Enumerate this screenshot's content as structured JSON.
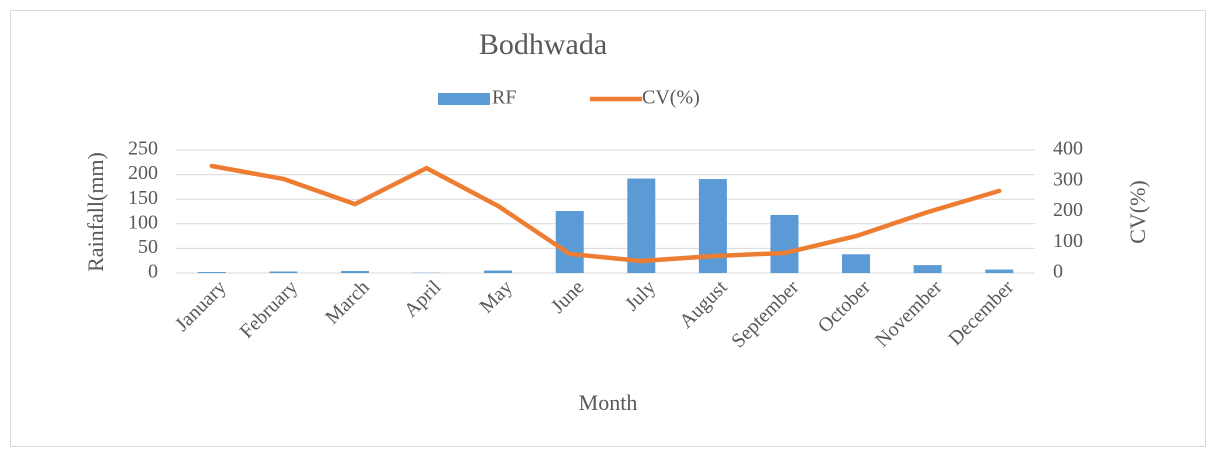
{
  "chart_data": {
    "type": "bar_line",
    "title": "Bodhwada",
    "categories": [
      "January",
      "February",
      "March",
      "April",
      "May",
      "June",
      "July",
      "August",
      "September",
      "October",
      "November",
      "December"
    ],
    "series": [
      {
        "name": "RF",
        "type": "bar",
        "color": "#5b9bd5",
        "values": [
          2,
          3,
          4,
          0.5,
          5,
          126,
          192,
          191,
          118,
          38,
          16,
          7
        ]
      },
      {
        "name": "CV(%)",
        "type": "line",
        "axis": "y2",
        "color": "#ed7d31",
        "values": [
          348,
          306,
          224,
          341,
          218,
          62,
          39,
          55,
          65,
          120,
          198,
          267
        ]
      }
    ],
    "ylim": [
      0,
      250
    ],
    "yticks": [
      0,
      50,
      100,
      150,
      200,
      250
    ],
    "y2lim": [
      0,
      400
    ],
    "y2ticks": [
      0,
      100,
      200,
      300,
      400
    ],
    "xlabel": "Month",
    "ylabel": "Rainfall(mm)",
    "y2label": "CV(%)",
    "grid": true,
    "legend": "top"
  }
}
